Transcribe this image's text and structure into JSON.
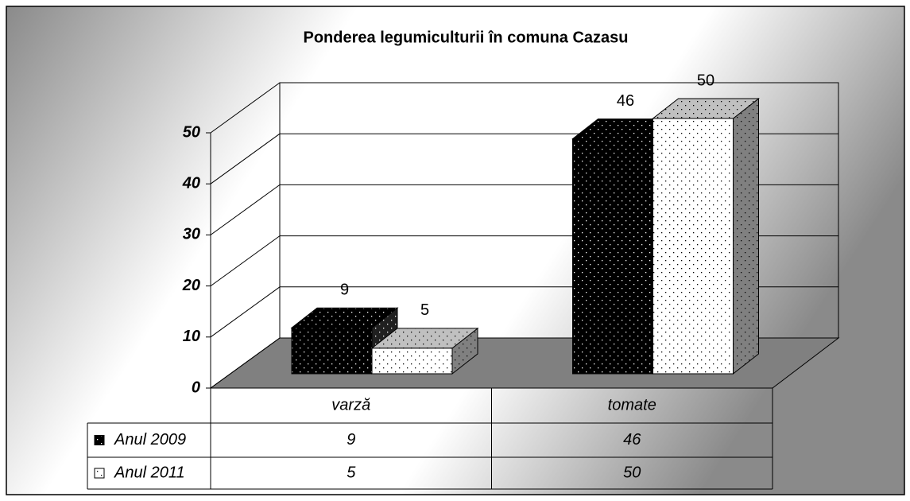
{
  "chart_data": {
    "type": "bar3d",
    "title": "Ponderea legumiculturii în comuna Cazasu",
    "categories": [
      "varză",
      "tomate"
    ],
    "series": [
      {
        "name": "Anul 2009",
        "color": "#000000",
        "values": [
          9,
          46
        ]
      },
      {
        "name": "Anul 2011",
        "color": "#ffffff",
        "values": [
          5,
          50
        ]
      }
    ],
    "ylim": [
      0,
      50
    ],
    "yticks": [
      0,
      10,
      20,
      30,
      40,
      50
    ],
    "grid": true,
    "data_table": true
  }
}
